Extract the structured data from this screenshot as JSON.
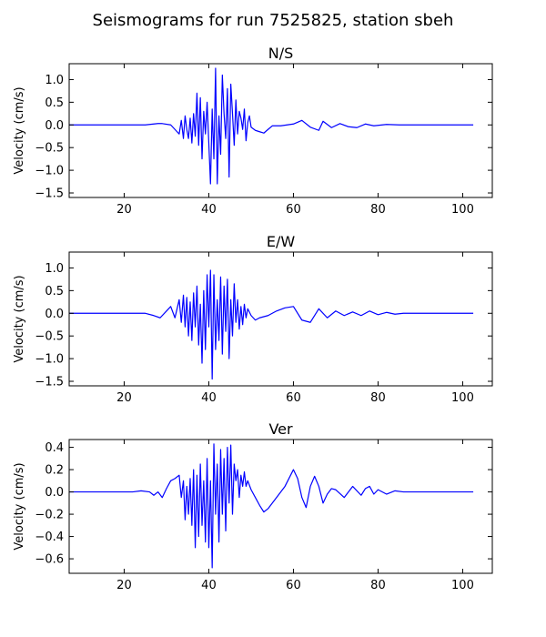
{
  "figure": {
    "title": "Seismograms for run 7525825, station sbeh"
  },
  "colors": {
    "trace": "#0000ff",
    "axes": "#000000",
    "background": "#ffffff"
  },
  "chart_data": [
    {
      "type": "line",
      "title": "N/S",
      "xlabel": "",
      "ylabel": "Velocity (cm/s)",
      "xlim": [
        7,
        107
      ],
      "ylim": [
        -1.6,
        1.35
      ],
      "xticks": [
        20,
        40,
        60,
        80,
        100
      ],
      "yticks": [
        1.0,
        0.5,
        0.0,
        -0.5,
        -1.0,
        -1.5
      ],
      "ytick_labels": [
        "1.0",
        "0.5",
        "0.0",
        "−0.5",
        "−1.0",
        "−1.5"
      ],
      "grid": false,
      "x": [
        7,
        20,
        25,
        28,
        29,
        31,
        33,
        33.5,
        34,
        34.4,
        34.8,
        35.2,
        35.6,
        36,
        36.4,
        36.8,
        37.2,
        37.6,
        38,
        38.4,
        38.8,
        39.2,
        39.6,
        40,
        40.4,
        40.8,
        41.2,
        41.6,
        42,
        42.4,
        42.8,
        43.2,
        43.6,
        44,
        44.4,
        44.8,
        45.2,
        45.6,
        46,
        46.4,
        46.8,
        47.2,
        47.6,
        48,
        48.4,
        48.8,
        49.2,
        49.6,
        50,
        51,
        52,
        53,
        54,
        55,
        57,
        60,
        62,
        64,
        66,
        67,
        69,
        71,
        73,
        75,
        77,
        79,
        82,
        85,
        90,
        95,
        102.5
      ],
      "y": [
        0,
        0,
        0,
        0.03,
        0.03,
        0,
        -0.2,
        0.1,
        -0.3,
        0.2,
        -0.1,
        -0.3,
        0.15,
        -0.4,
        0.25,
        -0.25,
        0.7,
        -0.45,
        0.6,
        -0.75,
        0.3,
        -0.2,
        0.5,
        -0.4,
        -1.3,
        0.35,
        -0.75,
        1.25,
        -1.3,
        0.2,
        -0.65,
        1.1,
        0.25,
        -0.3,
        0.8,
        -1.15,
        0.9,
        0.25,
        -0.45,
        0.55,
        -0.2,
        0.3,
        0.15,
        -0.1,
        0.35,
        -0.35,
        0.05,
        0.2,
        -0.05,
        -0.12,
        -0.15,
        -0.18,
        -0.1,
        -0.02,
        -0.02,
        0.02,
        0.1,
        -0.05,
        -0.12,
        0.08,
        -0.06,
        0.03,
        -0.04,
        -0.06,
        0.02,
        -0.02,
        0.01,
        0,
        0,
        0,
        0
      ]
    },
    {
      "type": "line",
      "title": "E/W",
      "xlabel": "",
      "ylabel": "Velocity (cm/s)",
      "xlim": [
        7,
        107
      ],
      "ylim": [
        -1.6,
        1.35
      ],
      "xticks": [
        20,
        40,
        60,
        80,
        100
      ],
      "yticks": [
        1.0,
        0.5,
        0.0,
        -0.5,
        -1.0,
        -1.5
      ],
      "ytick_labels": [
        "1.0",
        "0.5",
        "0.0",
        "−0.5",
        "−1.0",
        "−1.5"
      ],
      "grid": false,
      "x": [
        7,
        20,
        23,
        25,
        27,
        28.5,
        30,
        31,
        32,
        33,
        33.5,
        34,
        34.4,
        34.8,
        35.2,
        35.6,
        36,
        36.4,
        36.8,
        37.2,
        37.6,
        38,
        38.4,
        38.8,
        39.2,
        39.6,
        40,
        40.4,
        40.8,
        41.2,
        41.6,
        42,
        42.4,
        42.8,
        43.2,
        43.6,
        44,
        44.4,
        44.8,
        45.2,
        45.6,
        46,
        46.4,
        46.8,
        47.2,
        47.6,
        48,
        48.4,
        48.8,
        49.2,
        50,
        51,
        52,
        54,
        56,
        58,
        60,
        62,
        64,
        66,
        68,
        70,
        72,
        74,
        76,
        78,
        80,
        82,
        84,
        86,
        90,
        95,
        102.5
      ],
      "y": [
        0,
        0,
        0,
        0,
        -0.05,
        -0.1,
        0.05,
        0.15,
        -0.1,
        0.3,
        -0.2,
        0.4,
        -0.3,
        0.35,
        -0.5,
        0.25,
        -0.6,
        0.45,
        -0.3,
        0.6,
        -0.7,
        0.2,
        -1.1,
        0.5,
        -0.8,
        0.85,
        -0.3,
        0.95,
        -1.45,
        0.85,
        -0.8,
        0.3,
        -0.6,
        0.8,
        -0.9,
        0.6,
        -0.4,
        0.75,
        -1.0,
        0.3,
        -0.5,
        0.65,
        -0.2,
        0.3,
        -0.35,
        0.15,
        -0.25,
        0.2,
        -0.1,
        0.1,
        -0.05,
        -0.15,
        -0.1,
        -0.05,
        0.05,
        0.12,
        0.15,
        -0.15,
        -0.2,
        0.1,
        -0.1,
        0.05,
        -0.05,
        0.03,
        -0.05,
        0.05,
        -0.03,
        0.02,
        -0.02,
        0,
        0,
        0,
        0
      ]
    },
    {
      "type": "line",
      "title": "Ver",
      "xlabel": "",
      "ylabel": "Velocity (cm/s)",
      "xlim": [
        7,
        107
      ],
      "ylim": [
        -0.73,
        0.47
      ],
      "xticks": [
        20,
        40,
        60,
        80,
        100
      ],
      "yticks": [
        0.4,
        0.2,
        0.0,
        -0.2,
        -0.4,
        -0.6
      ],
      "ytick_labels": [
        "0.4",
        "0.2",
        "0.0",
        "−0.2",
        "−0.4",
        "−0.6"
      ],
      "grid": false,
      "x": [
        7,
        20,
        22,
        24,
        26,
        27,
        28,
        29,
        30,
        31,
        32,
        33,
        33.5,
        34,
        34.4,
        34.8,
        35.2,
        35.6,
        36,
        36.4,
        36.8,
        37.2,
        37.6,
        38,
        38.4,
        38.8,
        39.2,
        39.6,
        40,
        40.4,
        40.8,
        41.2,
        41.6,
        42,
        42.4,
        42.8,
        43.2,
        43.6,
        44,
        44.4,
        44.8,
        45.2,
        45.6,
        46,
        46.4,
        46.8,
        47.2,
        47.6,
        48,
        48.4,
        48.8,
        49.2,
        50,
        51,
        52,
        53,
        54,
        56,
        58,
        60,
        61,
        62,
        63,
        64,
        65,
        66,
        67,
        68,
        69,
        70,
        72,
        74,
        76,
        77,
        78,
        79,
        80,
        82,
        84,
        86,
        90,
        95,
        102.5
      ],
      "y": [
        0,
        0,
        0,
        0.01,
        0,
        -0.03,
        0,
        -0.05,
        0.03,
        0.1,
        0.12,
        0.15,
        -0.05,
        0.1,
        -0.25,
        0.05,
        -0.2,
        0.12,
        -0.3,
        0.2,
        -0.5,
        0.15,
        -0.4,
        0.25,
        -0.3,
        0.1,
        -0.45,
        0.3,
        -0.5,
        0.1,
        -0.68,
        0.43,
        -0.2,
        0.25,
        -0.45,
        0.38,
        -0.2,
        0.3,
        -0.35,
        0.4,
        -0.1,
        0.42,
        -0.2,
        0.25,
        0.1,
        0.2,
        -0.05,
        0.15,
        0.05,
        0.18,
        0.05,
        0.1,
        0.02,
        -0.05,
        -0.12,
        -0.18,
        -0.15,
        -0.05,
        0.05,
        0.2,
        0.12,
        -0.05,
        -0.14,
        0.05,
        0.14,
        0.05,
        -0.1,
        -0.02,
        0.03,
        0.02,
        -0.05,
        0.05,
        -0.03,
        0.03,
        0.05,
        -0.02,
        0.02,
        -0.02,
        0.01,
        0,
        0,
        0,
        0
      ]
    }
  ]
}
